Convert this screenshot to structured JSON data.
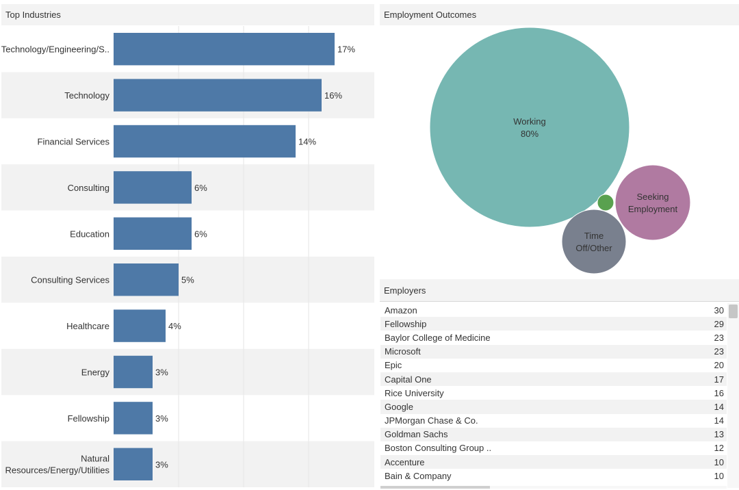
{
  "industries": {
    "title": "Top Industries"
  },
  "outcomes": {
    "title": "Employment Outcomes"
  },
  "employers": {
    "title": "Employers",
    "rows": [
      {
        "name": "Amazon",
        "count": "30"
      },
      {
        "name": "Fellowship",
        "count": "29"
      },
      {
        "name": "Baylor College of Medicine",
        "count": "23"
      },
      {
        "name": "Microsoft",
        "count": "23"
      },
      {
        "name": "Epic",
        "count": "20"
      },
      {
        "name": "Capital One",
        "count": "17"
      },
      {
        "name": "Rice University",
        "count": "16"
      },
      {
        "name": "Google",
        "count": "14"
      },
      {
        "name": "JPMorgan Chase & Co.",
        "count": "14"
      },
      {
        "name": "Goldman Sachs",
        "count": "13"
      },
      {
        "name": "Boston Consulting Group ..",
        "count": "12"
      },
      {
        "name": "Accenture",
        "count": "10"
      },
      {
        "name": "Bain & Company",
        "count": "10"
      }
    ]
  },
  "colors": {
    "bar": "#4e79a7",
    "working": "#76b7b2",
    "seeking": "#b07aa1",
    "time_off": "#79808e",
    "small": "#59a14f"
  },
  "chart_data": [
    {
      "type": "bar",
      "orientation": "horizontal",
      "title": "Top Industries",
      "categories": [
        "Technology/Engineering/S..",
        "Technology",
        "Financial Services",
        "Consulting",
        "Education",
        "Consulting Services",
        "Healthcare",
        "Energy",
        "Fellowship",
        "Natural Resources/Energy/Utilities"
      ],
      "values": [
        17,
        16,
        14,
        6,
        6,
        5,
        4,
        3,
        3,
        3
      ],
      "value_labels": [
        "17%",
        "16%",
        "14%",
        "6%",
        "6%",
        "5%",
        "4%",
        "3%",
        "3%",
        "3%"
      ],
      "unit": "%",
      "xlim": [
        0,
        20
      ],
      "grid": true
    },
    {
      "type": "bubble",
      "title": "Employment Outcomes",
      "series": [
        {
          "label": "Working",
          "value_label": "80%",
          "value": 80
        },
        {
          "label": "Seeking Employment",
          "value_label": "",
          "value": 11
        },
        {
          "label": "Time Off/Other",
          "value_label": "",
          "value": 8
        },
        {
          "label": "",
          "value_label": "",
          "value": 1
        }
      ]
    }
  ]
}
